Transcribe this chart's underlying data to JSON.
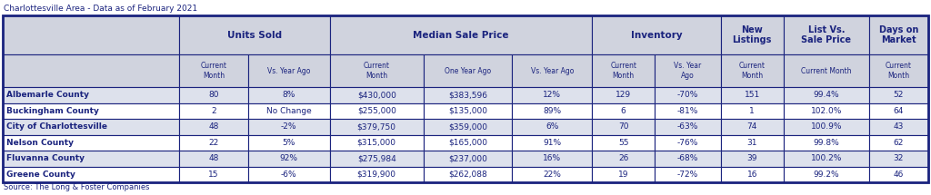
{
  "title": "Charlottesville Area - Data as of February 2021",
  "source": "Source: The Long & Foster Companies",
  "header_bg": "#d0d3de",
  "header_text_color": "#1a237e",
  "row_text_color": "#1a237e",
  "border_color": "#1a237e",
  "row_bg_alt": "#dde1ec",
  "row_bg_white": "#ffffff",
  "sub_headers": [
    "Current\nMonth",
    "Vs. Year Ago",
    "Current\nMonth",
    "One Year Ago",
    "Vs. Year Ago",
    "Current\nMonth",
    "Vs. Year\nAgo",
    "Current\nMonth",
    "Current Month",
    "Current\nMonth"
  ],
  "row_labels": [
    "Albemarle County",
    "Buckingham County",
    "City of Charlottesville",
    "Nelson County",
    "Fluvanna County",
    "Greene County"
  ],
  "rows": [
    [
      "80",
      "8%",
      "$430,000",
      "$383,596",
      "12%",
      "129",
      "-70%",
      "151",
      "99.4%",
      "52"
    ],
    [
      "2",
      "No Change",
      "$255,000",
      "$135,000",
      "89%",
      "6",
      "-81%",
      "1",
      "102.0%",
      "64"
    ],
    [
      "48",
      "-2%",
      "$379,750",
      "$359,000",
      "6%",
      "70",
      "-63%",
      "74",
      "100.9%",
      "43"
    ],
    [
      "22",
      "5%",
      "$315,000",
      "$165,000",
      "91%",
      "55",
      "-76%",
      "31",
      "99.8%",
      "62"
    ],
    [
      "48",
      "92%",
      "$275,984",
      "$237,000",
      "16%",
      "26",
      "-68%",
      "39",
      "100.2%",
      "32"
    ],
    [
      "15",
      "-6%",
      "$319,900",
      "$262,088",
      "22%",
      "19",
      "-72%",
      "16",
      "99.2%",
      "46"
    ]
  ],
  "col_widths_rel": [
    1.55,
    0.6,
    0.72,
    0.82,
    0.78,
    0.7,
    0.55,
    0.58,
    0.55,
    0.75,
    0.52
  ],
  "groups": [
    {
      "label": "Units Sold",
      "cols": [
        1,
        2
      ],
      "fontsize": 7.5
    },
    {
      "label": "Median Sale Price",
      "cols": [
        3,
        4,
        5
      ],
      "fontsize": 7.5
    },
    {
      "label": "Inventory",
      "cols": [
        6,
        7
      ],
      "fontsize": 7.5
    },
    {
      "label": "New\nListings",
      "cols": [
        8
      ],
      "fontsize": 7.0
    },
    {
      "label": "List Vs.\nSale Price",
      "cols": [
        9
      ],
      "fontsize": 7.0
    },
    {
      "label": "Days on\nMarket",
      "cols": [
        10
      ],
      "fontsize": 7.0
    }
  ]
}
